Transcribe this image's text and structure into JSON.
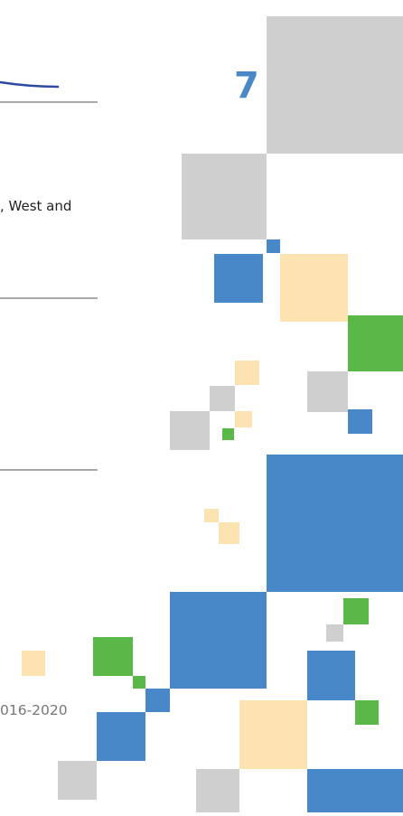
{
  "page_number": "7",
  "body_fragment": ", West and",
  "footer_fragment": "016-2020"
}
